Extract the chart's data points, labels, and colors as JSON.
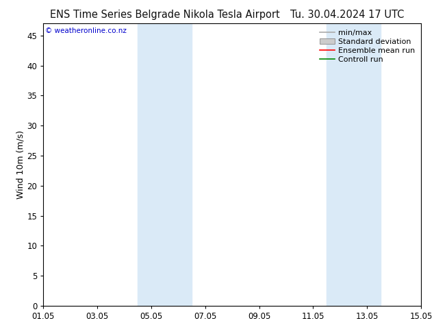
{
  "title_left": "ENS Time Series Belgrade Nikola Tesla Airport",
  "title_right": "Tu. 30.04.2024 17 UTC",
  "ylabel": "Wind 10m (m/s)",
  "watermark": "© weatheronline.co.nz",
  "watermark_color": "#0000cc",
  "ylim": [
    0,
    47
  ],
  "yticks": [
    0,
    5,
    10,
    15,
    20,
    25,
    30,
    35,
    40,
    45
  ],
  "x_start": 0,
  "x_end": 14,
  "xtick_positions": [
    0,
    2,
    4,
    6,
    8,
    10,
    12,
    14
  ],
  "xtick_labels": [
    "01.05",
    "03.05",
    "05.05",
    "07.05",
    "09.05",
    "11.05",
    "13.05",
    "15.05"
  ],
  "shade_bands": [
    {
      "x_start": 3.5,
      "x_end": 5.5,
      "color": "#daeaf7"
    },
    {
      "x_start": 10.5,
      "x_end": 12.5,
      "color": "#daeaf7"
    }
  ],
  "bg_color": "#ffffff",
  "plot_bg_color": "#ffffff",
  "legend_items": [
    {
      "label": "min/max",
      "color": "#aaaaaa",
      "type": "line"
    },
    {
      "label": "Standard deviation",
      "color": "#cccccc",
      "type": "box"
    },
    {
      "label": "Ensemble mean run",
      "color": "#ff0000",
      "type": "line"
    },
    {
      "label": "Controll run",
      "color": "#008800",
      "type": "line"
    }
  ],
  "title_fontsize": 10.5,
  "tick_fontsize": 8.5,
  "legend_fontsize": 8,
  "ylabel_fontsize": 9,
  "watermark_fontsize": 7.5
}
